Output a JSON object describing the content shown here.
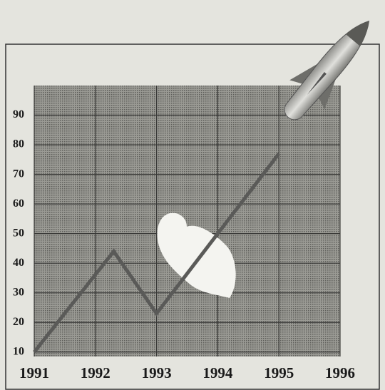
{
  "chart_data": {
    "type": "line",
    "x": [
      1991,
      1992.3,
      1993,
      1995
    ],
    "values": [
      10,
      44,
      23,
      77
    ],
    "color": "#5a5a58",
    "xlim": [
      1991,
      1996
    ],
    "xticks": [
      1991,
      1992,
      1993,
      1994,
      1995,
      1996
    ],
    "ylim": [
      8.5,
      100
    ],
    "yticks": [
      10,
      20,
      30,
      40,
      50,
      60,
      70,
      80,
      90
    ],
    "grid": true
  }
}
